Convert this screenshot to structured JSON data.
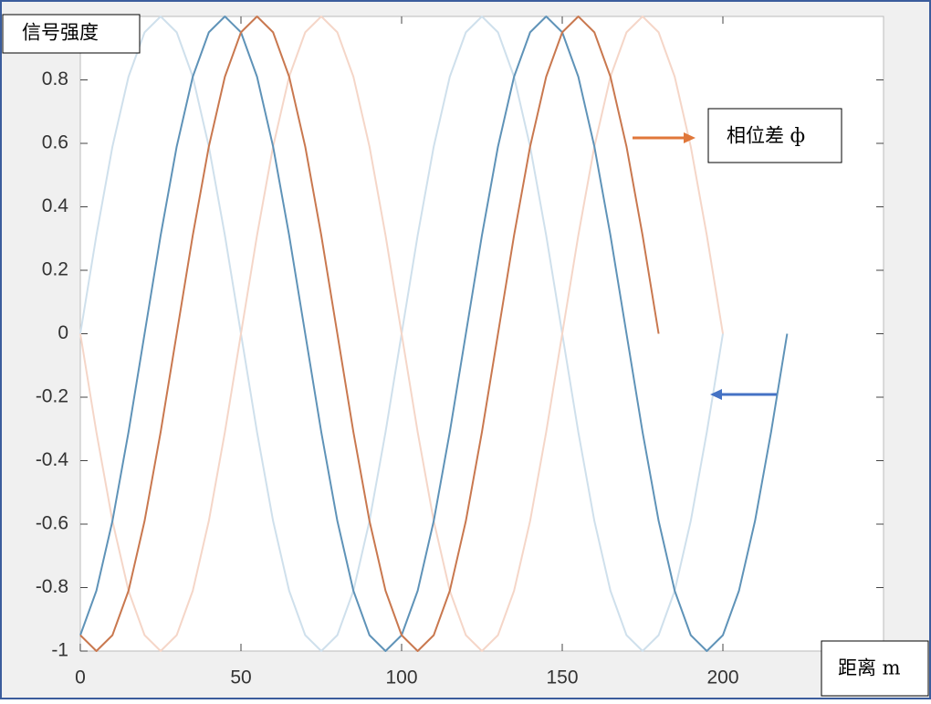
{
  "chart_data": {
    "type": "line",
    "y_label": "信号强度",
    "x_label": "距离 m",
    "annotation": "相位差 ф",
    "x": [
      0,
      5,
      10,
      15,
      20,
      25,
      30,
      35,
      40,
      45,
      50,
      55,
      60,
      65,
      70,
      75,
      80,
      85,
      90,
      95,
      100,
      105,
      110,
      115,
      120,
      125,
      130,
      135,
      140,
      145,
      150,
      155,
      160,
      165,
      170,
      175,
      180,
      185,
      190,
      195,
      200,
      205,
      210,
      215,
      220
    ],
    "series": [
      {
        "color": "#cfe0ec",
        "values": [
          0,
          0.31,
          0.59,
          0.81,
          0.95,
          1,
          0.95,
          0.81,
          0.59,
          0.31,
          0,
          -0.31,
          -0.59,
          -0.81,
          -0.95,
          -1,
          -0.95,
          -0.81,
          -0.59,
          -0.31,
          0,
          0.31,
          0.59,
          0.81,
          0.95,
          1,
          0.95,
          0.81,
          0.59,
          0.31,
          0,
          -0.31,
          -0.59,
          -0.81,
          -0.95,
          -1,
          -0.95,
          -0.81,
          -0.59,
          -0.31,
          0,
          null,
          null,
          null,
          null
        ]
      },
      {
        "color": "#f5d6c8",
        "values": [
          0,
          -0.31,
          -0.59,
          -0.81,
          -0.95,
          -1,
          -0.95,
          -0.81,
          -0.59,
          -0.31,
          0,
          0.31,
          0.59,
          0.81,
          0.95,
          1,
          0.95,
          0.81,
          0.59,
          0.31,
          0,
          -0.31,
          -0.59,
          -0.81,
          -0.95,
          -1,
          -0.95,
          -0.81,
          -0.59,
          -0.31,
          0,
          0.31,
          0.59,
          0.81,
          0.95,
          1,
          0.95,
          0.81,
          0.59,
          0.31,
          0,
          null,
          null,
          null,
          null
        ]
      },
      {
        "color": "#5f93b8",
        "values": [
          -0.95,
          -0.81,
          -0.59,
          -0.31,
          0,
          0.31,
          0.59,
          0.81,
          0.95,
          1,
          0.95,
          0.81,
          0.59,
          0.31,
          0,
          -0.31,
          -0.59,
          -0.81,
          -0.95,
          -1,
          -0.95,
          -0.81,
          -0.59,
          -0.31,
          0,
          0.31,
          0.59,
          0.81,
          0.95,
          1,
          0.95,
          0.81,
          0.59,
          0.31,
          0,
          -0.31,
          -0.59,
          -0.81,
          -0.95,
          -1,
          -0.95,
          -0.81,
          -0.59,
          -0.31,
          0
        ]
      },
      {
        "color": "#c9784f",
        "values": [
          -0.95,
          -1,
          -0.95,
          -0.81,
          -0.59,
          -0.31,
          0,
          0.31,
          0.59,
          0.81,
          0.95,
          1,
          0.95,
          0.81,
          0.59,
          0.31,
          0,
          -0.31,
          -0.59,
          -0.81,
          -0.95,
          -1,
          -0.95,
          -0.81,
          -0.59,
          -0.31,
          0,
          0.31,
          0.59,
          0.81,
          0.95,
          1,
          0.95,
          0.81,
          0.59,
          0.31,
          0,
          null,
          null,
          null,
          null,
          null,
          null,
          null,
          null
        ]
      }
    ],
    "xlim": [
      0,
      250
    ],
    "xticks": [
      0,
      50,
      100,
      150,
      200
    ],
    "ylim": [
      -1,
      1
    ],
    "yticks": [
      -1,
      -0.8,
      -0.6,
      -0.4,
      -0.2,
      0,
      0.2,
      0.4,
      0.6,
      0.8
    ]
  }
}
